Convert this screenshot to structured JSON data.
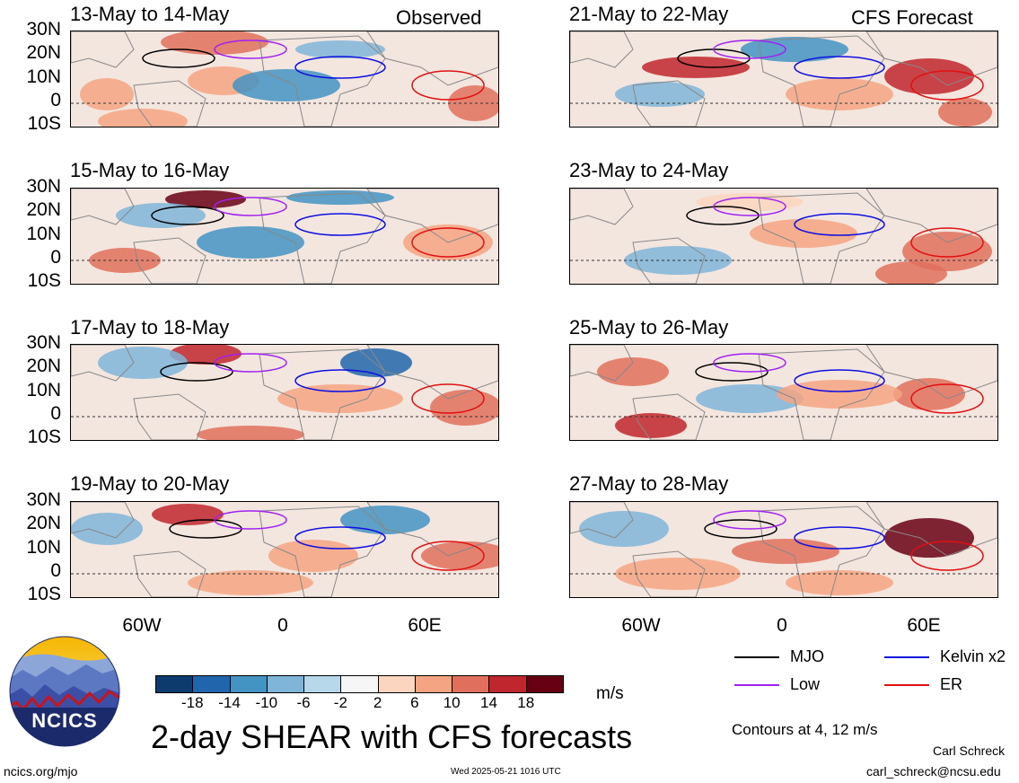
{
  "header": {
    "left": "Observed",
    "right": "CFS Forecast"
  },
  "panels": [
    {
      "date": "13-May to 14-May"
    },
    {
      "date": "15-May to 16-May"
    },
    {
      "date": "17-May to 18-May"
    },
    {
      "date": "19-May to 20-May"
    },
    {
      "date": "21-May to 22-May"
    },
    {
      "date": "23-May to 24-May"
    },
    {
      "date": "25-May to 26-May"
    },
    {
      "date": "27-May to 28-May"
    }
  ],
  "lat_labels": [
    "30N",
    "20N",
    "10N",
    "0",
    "10S"
  ],
  "lon_labels": [
    "60W",
    "0",
    "60E"
  ],
  "colorbar": {
    "unit": "m/s",
    "ticks": [
      "-18",
      "-14",
      "-10",
      "-6",
      "-2",
      "2",
      "6",
      "10",
      "14",
      "18"
    ],
    "colors": [
      "#0d3b6e",
      "#2166ac",
      "#4393c3",
      "#7fb5d9",
      "#b7d7ea",
      "#f6f6f6",
      "#fbd5c0",
      "#f4a482",
      "#e0705d",
      "#c0262d",
      "#670013"
    ]
  },
  "legend": [
    {
      "label": "MJO",
      "color": "#000000"
    },
    {
      "label": "Kelvin x2",
      "color": "#1010e0"
    },
    {
      "label": "Low",
      "color": "#a020f0"
    },
    {
      "label": "ER",
      "color": "#e01010"
    }
  ],
  "contours_note": "Contours at 4, 12 m/s",
  "title": "2-day SHEAR with CFS forecasts",
  "logo_text": "NCICS",
  "footer": {
    "url": "ncics.org/mjo",
    "timestamp": "Wed 2025-05-21 1016 UTC",
    "author": "Carl Schreck",
    "email": "carl_schreck@ncsu.edu"
  }
}
